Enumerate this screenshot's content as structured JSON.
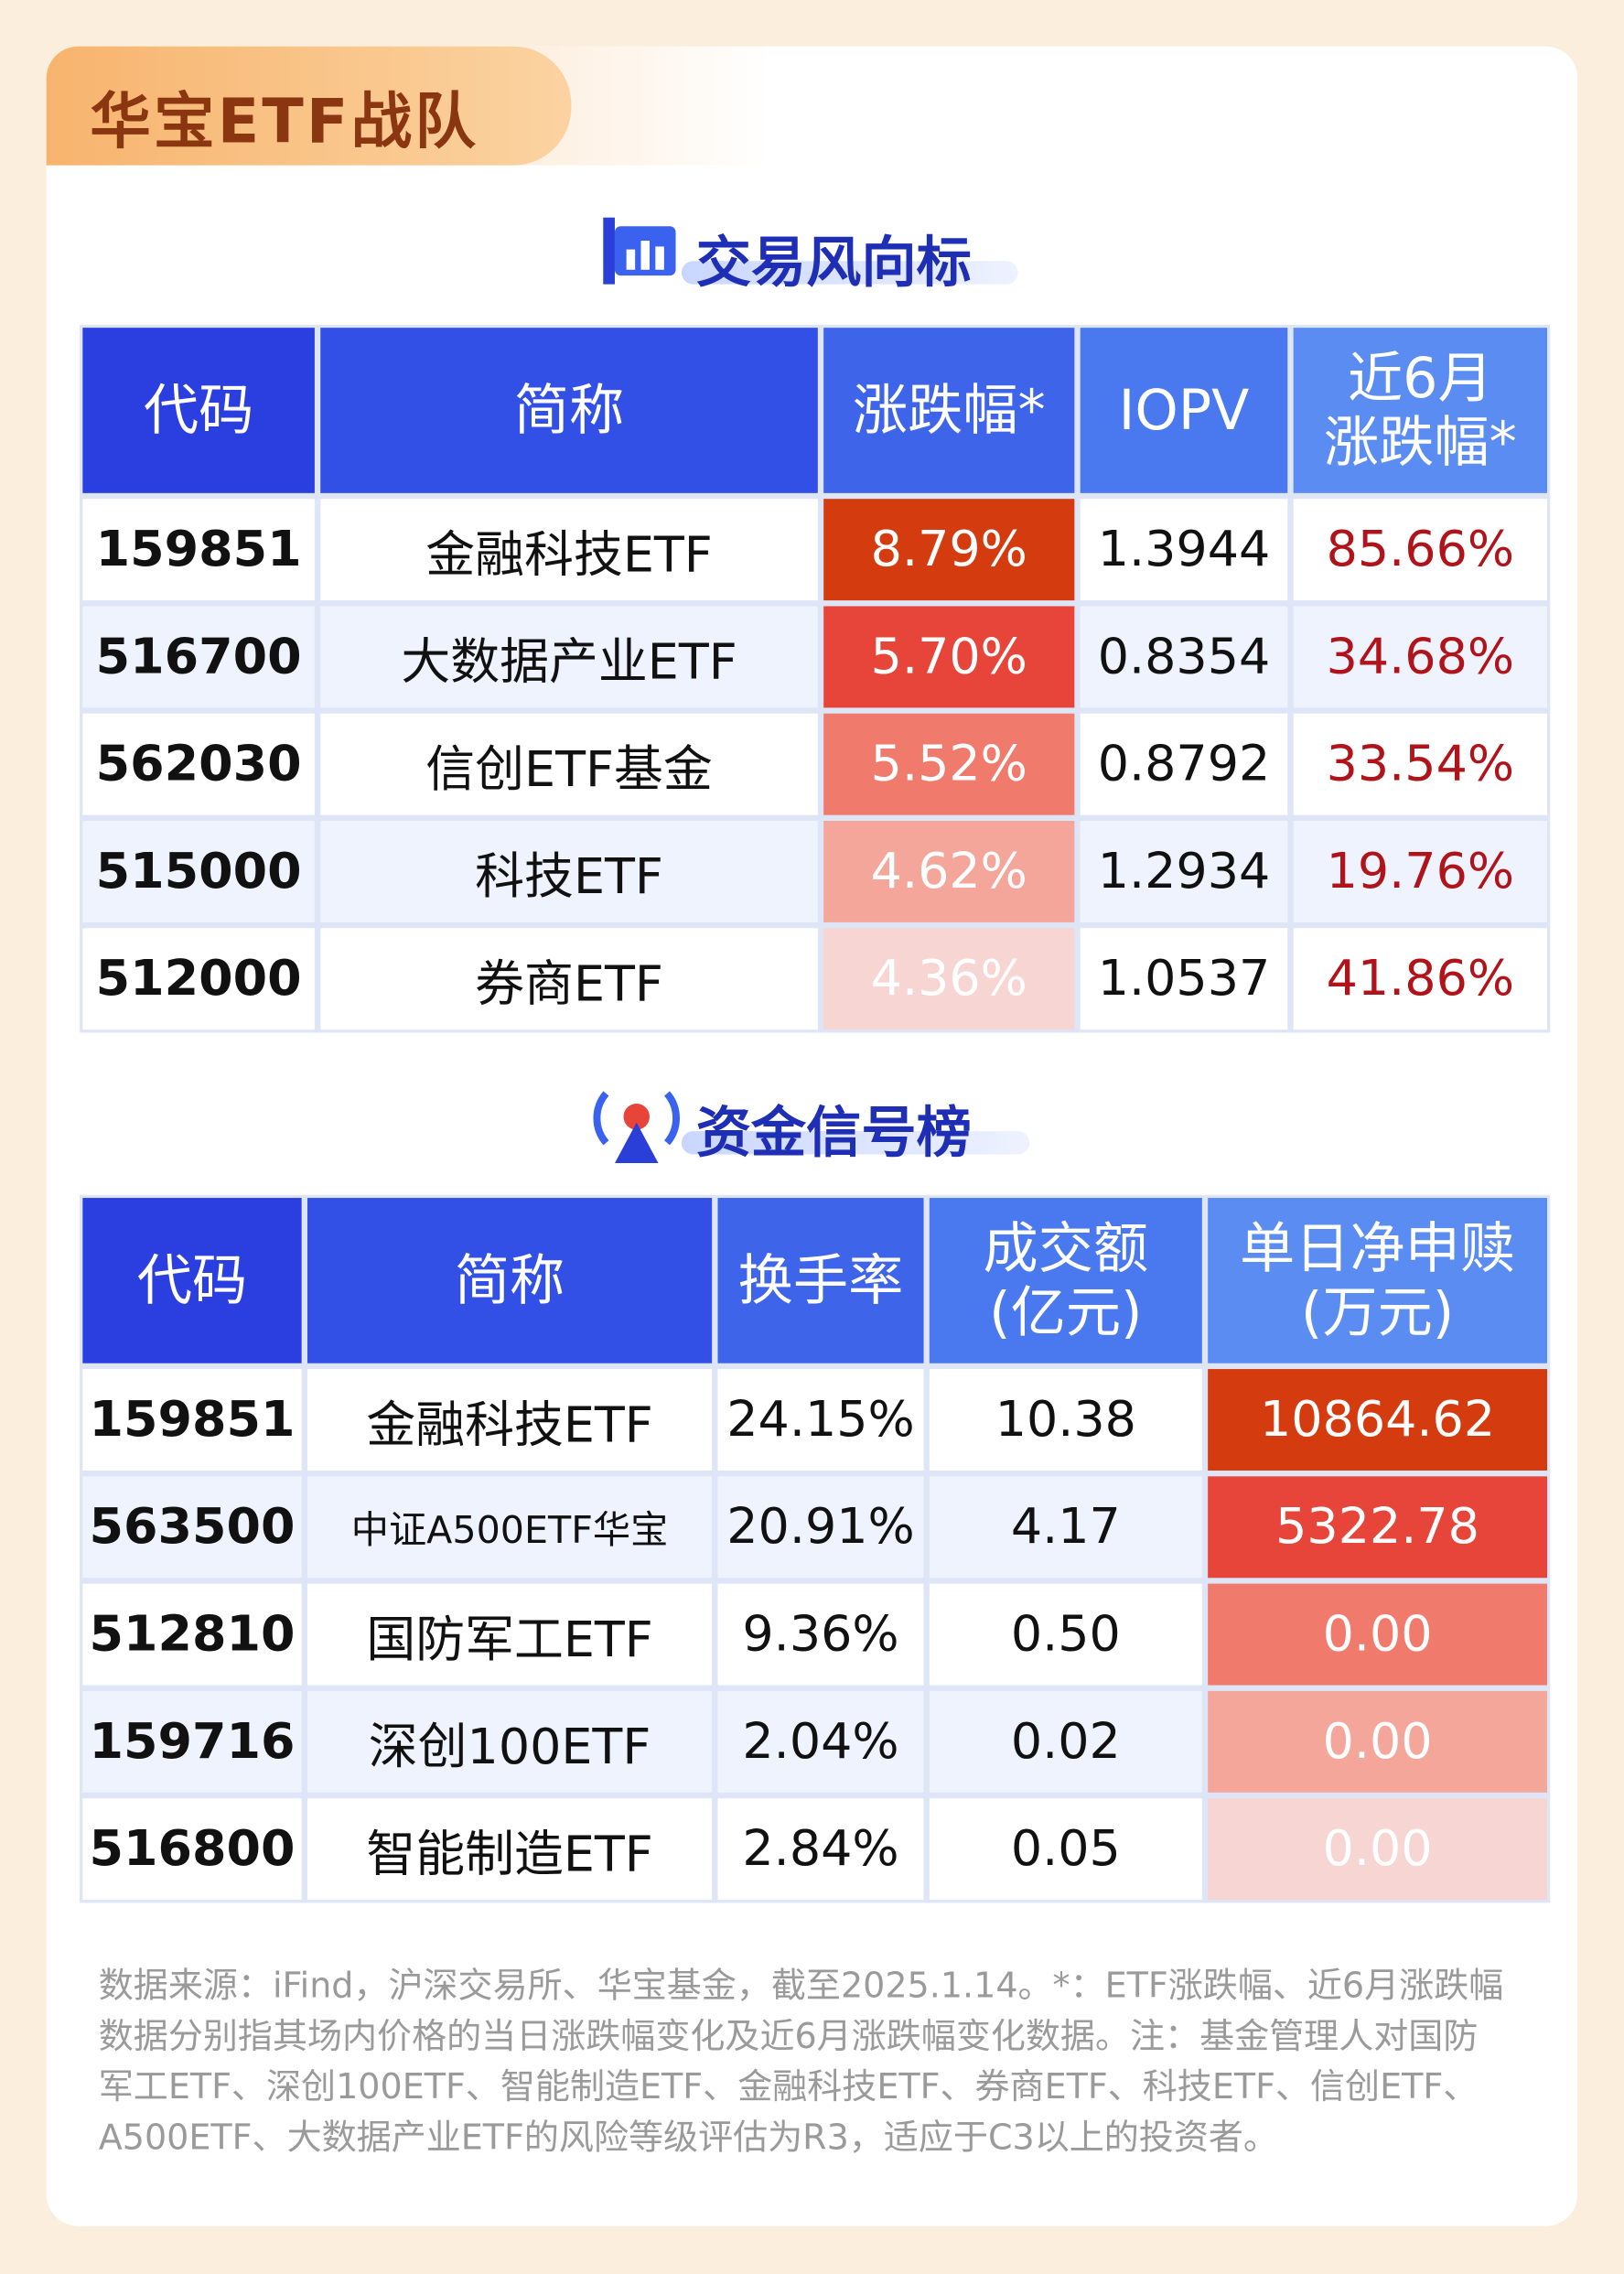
{
  "header": {
    "title": "华宝ETF战队"
  },
  "section1": {
    "title": "交易风向标",
    "columns": [
      [
        "代码"
      ],
      [
        "简称"
      ],
      [
        "涨跌幅*"
      ],
      [
        "IOPV"
      ],
      [
        "近6月",
        "涨跌幅*"
      ]
    ],
    "rows": [
      [
        "159851",
        "金融科技ETF",
        "8.79%",
        "1.3944",
        "85.66%"
      ],
      [
        "516700",
        "大数据产业ETF",
        "5.70%",
        "0.8354",
        "34.68%"
      ],
      [
        "562030",
        "信创ETF基金",
        "5.52%",
        "0.8792",
        "33.54%"
      ],
      [
        "515000",
        "科技ETF",
        "4.62%",
        "1.2934",
        "19.76%"
      ],
      [
        "512000",
        "券商ETF",
        "4.36%",
        "1.0537",
        "41.86%"
      ]
    ]
  },
  "section2": {
    "title": "资金信号榜",
    "columns": [
      [
        "代码"
      ],
      [
        "简称"
      ],
      [
        "换手率"
      ],
      [
        "成交额",
        "(亿元)"
      ],
      [
        "单日净申赎",
        "(万元)"
      ]
    ],
    "rows": [
      [
        "159851",
        "金融科技ETF",
        "24.15%",
        "10.38",
        "10864.62"
      ],
      [
        "563500",
        "中证A500ETF华宝",
        "20.91%",
        "4.17",
        "5322.78"
      ],
      [
        "512810",
        "国防军工ETF",
        "9.36%",
        "0.50",
        "0.00"
      ],
      [
        "159716",
        "深创100ETF",
        "2.04%",
        "0.02",
        "0.00"
      ],
      [
        "516800",
        "智能制造ETF",
        "2.84%",
        "0.05",
        "0.00"
      ]
    ]
  },
  "footnote": "数据来源：iFind，沪深交易所、华宝基金，截至2025.1.14。*：ETF涨跌幅、近6月涨跌幅数据分别指其场内价格的当日涨跌幅变化及近6月涨跌幅变化数据。注：基金管理人对国防军工ETF、深创100ETF、智能制造ETF、金融科技ETF、券商ETF、科技ETF、信创ETF、A500ETF、大数据产业ETF的风险等级评估为R3，适应于C3以上的投资者。"
}
